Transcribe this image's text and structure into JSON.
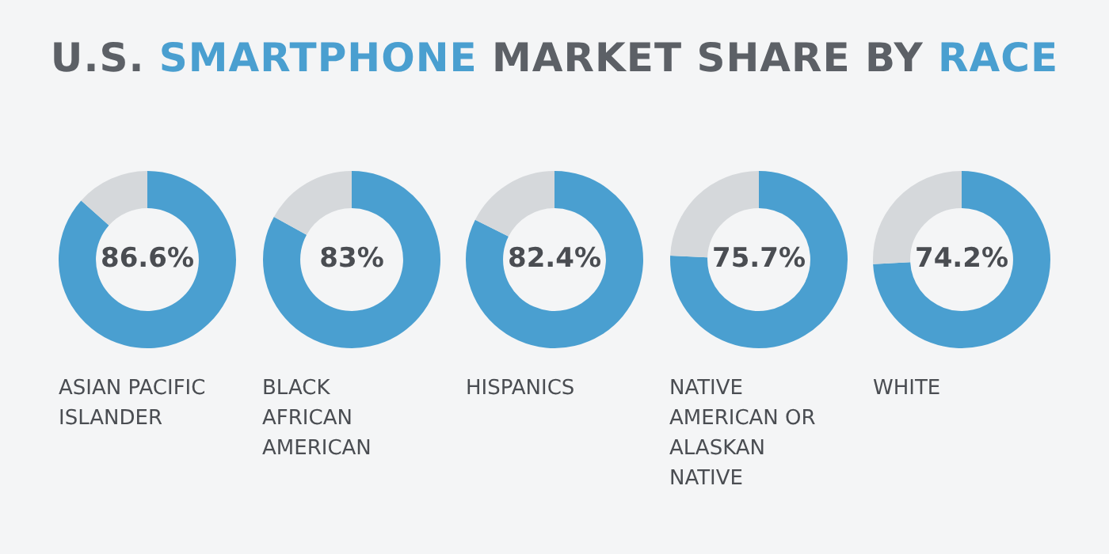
{
  "chart_data": [
    {
      "type": "donut",
      "title": "U.S. SMARTPHONE MARKET SHARE BY RACE",
      "xlabel": "ASIAN PACIFIC ISLANDER",
      "categories": [
        null,
        null
      ],
      "values": [
        86.6,
        13.4
      ],
      "colors": [
        "#4a9fd0",
        "#d5d8db"
      ],
      "value_labels": [
        "86.6%",
        null
      ],
      "legend": false
    },
    {
      "type": "donut",
      "xlabel": "BLACK AFRICAN AMERICAN",
      "categories": [
        null,
        null
      ],
      "values": [
        83,
        17
      ],
      "colors": [
        "#4a9fd0",
        "#d5d8db"
      ],
      "value_labels": [
        "83%",
        null
      ],
      "legend": false
    },
    {
      "type": "donut",
      "xlabel": "HISPANICS",
      "categories": [
        null,
        null
      ],
      "values": [
        82.4,
        17.6
      ],
      "colors": [
        "#4a9fd0",
        "#d5d8db"
      ],
      "value_labels": [
        "82.4%",
        null
      ],
      "legend": false
    },
    {
      "type": "donut",
      "xlabel": "NATIVE AMERICAN OR ALASKAN NATIVE",
      "categories": [
        null,
        null
      ],
      "values": [
        75.7,
        24.3
      ],
      "colors": [
        "#4a9fd0",
        "#d5d8db"
      ],
      "value_labels": [
        "75.7%",
        null
      ],
      "legend": false
    },
    {
      "type": "donut",
      "xlabel": "WHITE",
      "categories": [
        null,
        null
      ],
      "values": [
        74.2,
        25.8
      ],
      "colors": [
        "#4a9fd0",
        "#d5d8db"
      ],
      "value_labels": [
        "74.2%",
        null
      ],
      "legend": false
    }
  ]
}
